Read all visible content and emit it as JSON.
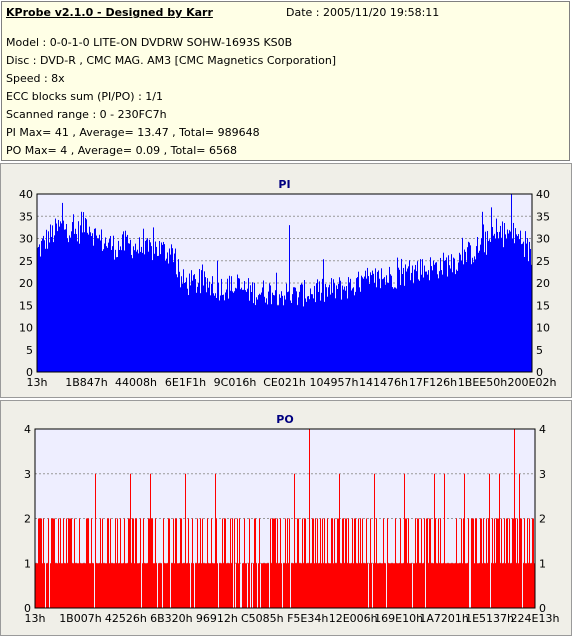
{
  "info": {
    "title": "KProbe v2.1.0 - Designed by Karr",
    "date": "Date : 2005/11/20 19:58:11",
    "lines": [
      "Model : 0-0-1-0 LITE-ON DVDRW SOHW-1693S KS0B",
      "Disc : DVD-R , CMC MAG. AM3 [CMC Magnetics Corporation]",
      "Speed : 8x",
      "ECC blocks sum (PI/PO) : 1/1",
      "Scanned range : 0 - 230FC7h",
      "PI Max= 41 , Average= 13.47 , Total= 989648",
      "PO Max= 4 , Average= 0.09 , Total= 6568"
    ]
  },
  "chart_data": [
    {
      "type": "bar",
      "title": "PI",
      "color": "#0000ff",
      "ylim": [
        0,
        40
      ],
      "y_ticks": [
        0,
        5,
        10,
        15,
        20,
        25,
        30,
        35,
        40
      ],
      "x_tick_labels": [
        "13h",
        "1B847h",
        "44008h",
        "6E1F1h",
        "9C016h",
        "CE021h",
        "104957h",
        "141476h",
        "17F126h",
        "1BEE50h",
        "200E02h"
      ],
      "envelope": [
        [
          0,
          27
        ],
        [
          2,
          30
        ],
        [
          5,
          33
        ],
        [
          8,
          31
        ],
        [
          10,
          34
        ],
        [
          12,
          30
        ],
        [
          14,
          29
        ],
        [
          16,
          28
        ],
        [
          18,
          29
        ],
        [
          20,
          28
        ],
        [
          22,
          27
        ],
        [
          24,
          28
        ],
        [
          26,
          27
        ],
        [
          28,
          27
        ],
        [
          28.3,
          21
        ],
        [
          30,
          20
        ],
        [
          33,
          20
        ],
        [
          36,
          19
        ],
        [
          40,
          19
        ],
        [
          44,
          18
        ],
        [
          48,
          18
        ],
        [
          52,
          17
        ],
        [
          55,
          18
        ],
        [
          58,
          18
        ],
        [
          62,
          19
        ],
        [
          66,
          20
        ],
        [
          70,
          21
        ],
        [
          74,
          22
        ],
        [
          78,
          23
        ],
        [
          82,
          24
        ],
        [
          85,
          25
        ],
        [
          88,
          27
        ],
        [
          91,
          29
        ],
        [
          94,
          31
        ],
        [
          96,
          31
        ],
        [
          98,
          30
        ],
        [
          100,
          26
        ]
      ],
      "peaks": [
        [
          5,
          38
        ],
        [
          9,
          36
        ],
        [
          51,
          33
        ],
        [
          90,
          36
        ],
        [
          92,
          37
        ],
        [
          96,
          41
        ]
      ]
    },
    {
      "type": "bar",
      "title": "PO",
      "color": "#ff0000",
      "ylim": [
        0,
        4
      ],
      "y_ticks": [
        0,
        1,
        2,
        3,
        4
      ],
      "x_tick_labels": [
        "13h",
        "1B007h",
        "42526h",
        "6B320h",
        "96912h",
        "C5085h",
        "F5E34h",
        "12E006h",
        "169E10h",
        "1A7201h",
        "1E5137h",
        "224E13h"
      ],
      "level2_density": 0.35,
      "level3_positions": [
        12,
        19,
        23,
        30,
        36,
        52,
        61,
        68,
        74,
        80,
        82,
        86,
        91,
        93,
        97
      ],
      "level4_positions": [
        55,
        96
      ]
    }
  ]
}
